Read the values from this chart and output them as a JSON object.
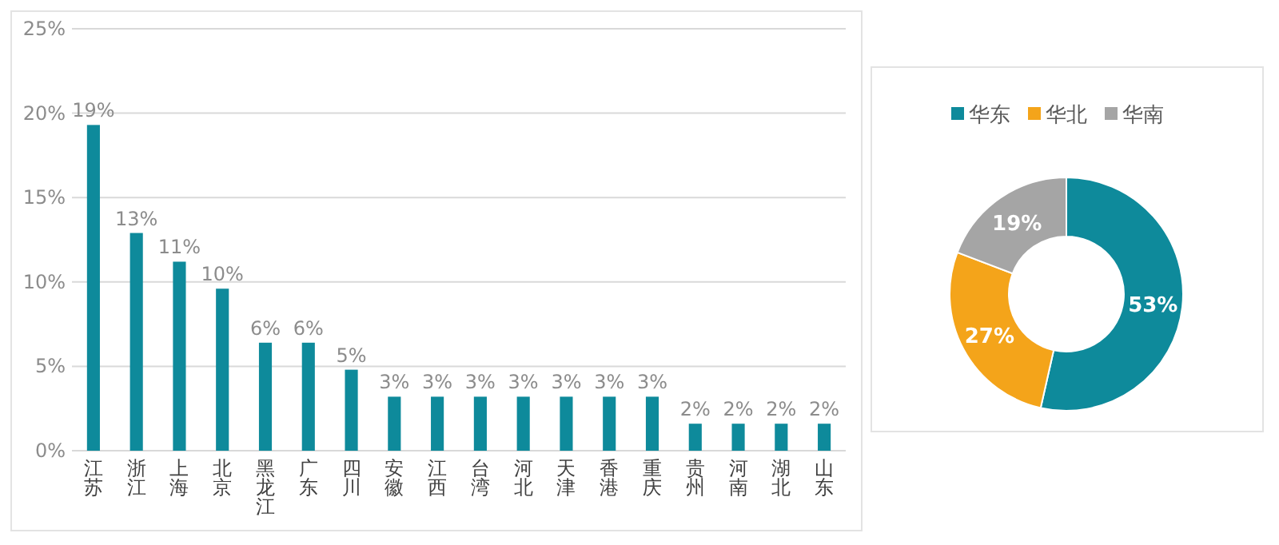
{
  "chart_data": [
    {
      "type": "bar",
      "categories": [
        "江苏",
        "浙江",
        "上海",
        "北京",
        "黑龙江",
        "广东",
        "四川",
        "安徽",
        "江西",
        "台湾",
        "河北",
        "天津",
        "香港",
        "重庆",
        "贵州",
        "河南",
        "湖北",
        "山东"
      ],
      "values": [
        19.3,
        12.9,
        11.2,
        9.6,
        6.4,
        6.4,
        4.8,
        3.2,
        3.2,
        3.2,
        3.2,
        3.2,
        3.2,
        3.2,
        1.6,
        1.6,
        1.6,
        1.6
      ],
      "value_labels": [
        "19%",
        "13%",
        "11%",
        "10%",
        "6%",
        "6%",
        "5%",
        "3%",
        "3%",
        "3%",
        "3%",
        "3%",
        "3%",
        "3%",
        "2%",
        "2%",
        "2%",
        "2%"
      ],
      "color": "#0e8a9b",
      "ylim": [
        0,
        25
      ],
      "yticks": [
        {
          "value": 0,
          "label": "0%"
        },
        {
          "value": 5,
          "label": "5%"
        },
        {
          "value": 10,
          "label": "10%"
        },
        {
          "value": 15,
          "label": "15%"
        },
        {
          "value": 20,
          "label": "20%"
        },
        {
          "value": 25,
          "label": "25%"
        }
      ],
      "grid": "y"
    },
    {
      "type": "donut",
      "categories": [
        "华东",
        "华北",
        "华南"
      ],
      "values": [
        53,
        27,
        19
      ],
      "value_labels": [
        "53%",
        "27%",
        "19%"
      ],
      "colors": [
        "#0e8a9b",
        "#f4a41a",
        "#a5a5a5"
      ],
      "legend": "top"
    }
  ]
}
